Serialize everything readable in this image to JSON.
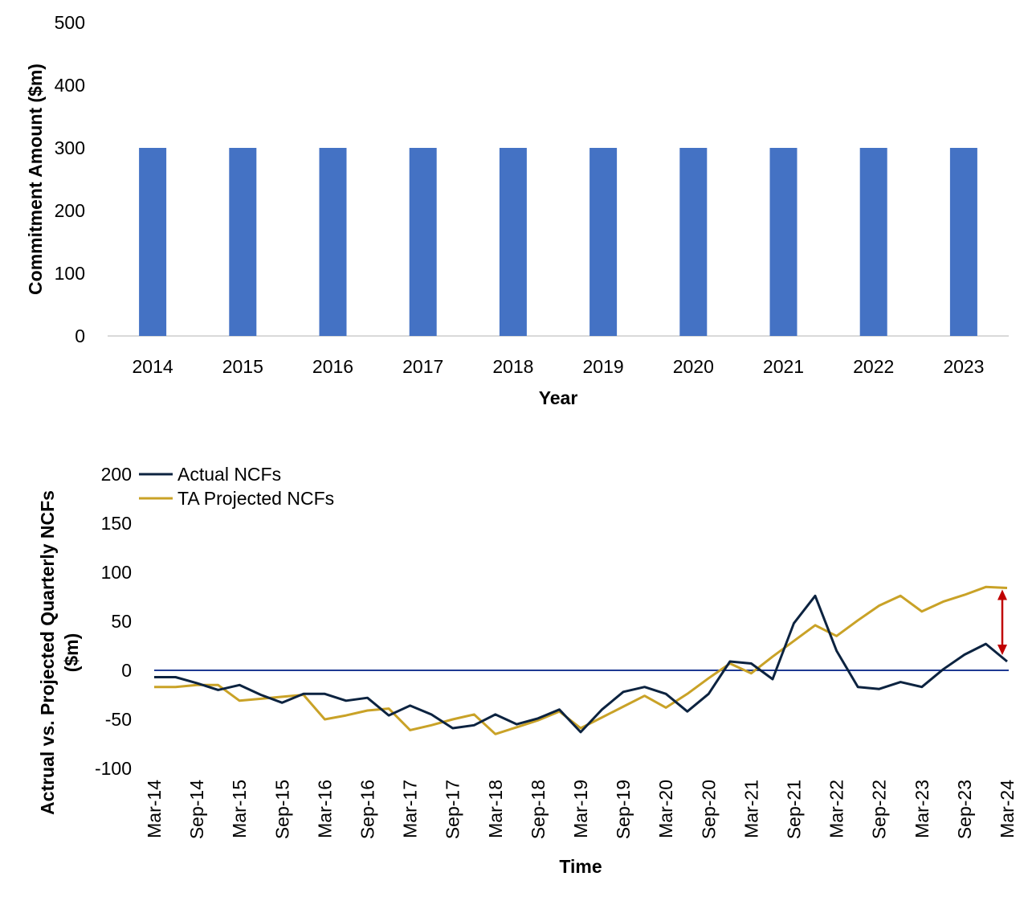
{
  "colors": {
    "bar": "#4472C4",
    "actual": "#0C2340",
    "projected": "#C9A227",
    "zero_line": "#1F3A93",
    "arrow": "#C00000",
    "axis": "#D9D9D9"
  },
  "chart_data": [
    {
      "type": "bar",
      "categories": [
        "2014",
        "2015",
        "2016",
        "2017",
        "2018",
        "2019",
        "2020",
        "2021",
        "2022",
        "2023"
      ],
      "values": [
        300,
        300,
        300,
        300,
        300,
        300,
        300,
        300,
        300,
        300
      ],
      "title": "",
      "xlabel": "Year",
      "ylabel": "Commitment Amount ($m)",
      "ylim": [
        0,
        500
      ],
      "yticks": [
        "0",
        "100",
        "200",
        "300",
        "400",
        "500"
      ],
      "grid": false,
      "legend": "none"
    },
    {
      "type": "line",
      "title": "",
      "xlabel": "Time",
      "ylabel_line1": "Actrual vs. Projected Quarterly NCFs",
      "ylabel_line2": "($m)",
      "ylim": [
        -100,
        200
      ],
      "yticks": [
        "-100",
        "-50",
        "0",
        "50",
        "100",
        "150",
        "200"
      ],
      "xtick_labels": [
        "Mar-14",
        "Sep-14",
        "Mar-15",
        "Sep-15",
        "Mar-16",
        "Sep-16",
        "Mar-17",
        "Sep-17",
        "Mar-18",
        "Sep-18",
        "Mar-19",
        "Sep-19",
        "Mar-20",
        "Sep-20",
        "Mar-21",
        "Sep-21",
        "Mar-22",
        "Sep-22",
        "Mar-23",
        "Sep-23",
        "Mar-24"
      ],
      "x": [
        "Mar-14",
        "Jun-14",
        "Sep-14",
        "Dec-14",
        "Mar-15",
        "Jun-15",
        "Sep-15",
        "Dec-15",
        "Mar-16",
        "Jun-16",
        "Sep-16",
        "Dec-16",
        "Mar-17",
        "Jun-17",
        "Sep-17",
        "Dec-17",
        "Mar-18",
        "Jun-18",
        "Sep-18",
        "Dec-18",
        "Mar-19",
        "Jun-19",
        "Sep-19",
        "Dec-19",
        "Mar-20",
        "Jun-20",
        "Sep-20",
        "Dec-20",
        "Mar-21",
        "Jun-21",
        "Sep-21",
        "Dec-21",
        "Mar-22",
        "Jun-22",
        "Sep-22",
        "Dec-22",
        "Mar-23",
        "Jun-23",
        "Sep-23",
        "Dec-23",
        "Mar-24"
      ],
      "series": [
        {
          "name": "Actual NCFs",
          "values": [
            -7,
            -7,
            -13,
            -20,
            -15,
            -25,
            -33,
            -24,
            -24,
            -31,
            -28,
            -46,
            -36,
            -45,
            -59,
            -56,
            -45,
            -55,
            -49,
            -40,
            -63,
            -40,
            -22,
            -17,
            -24,
            -42,
            -24,
            9,
            7,
            -9,
            48,
            76,
            20,
            -17,
            -19,
            -12,
            -17,
            1,
            16,
            27,
            9
          ]
        },
        {
          "name": "TA Projected NCFs",
          "values": [
            -17,
            -17,
            -15,
            -15,
            -31,
            -29,
            -27,
            -25,
            -50,
            -46,
            -41,
            -39,
            -61,
            -56,
            -50,
            -45,
            -65,
            -58,
            -51,
            -42,
            -59,
            -48,
            -37,
            -26,
            -38,
            -24,
            -8,
            7,
            -3,
            14,
            30,
            46,
            35,
            51,
            66,
            76,
            60,
            70,
            77,
            85,
            84
          ]
        }
      ],
      "annotation": {
        "type": "double-arrow",
        "at": "Mar-24",
        "from": 9,
        "to": 84
      },
      "legend": "top-left"
    }
  ]
}
